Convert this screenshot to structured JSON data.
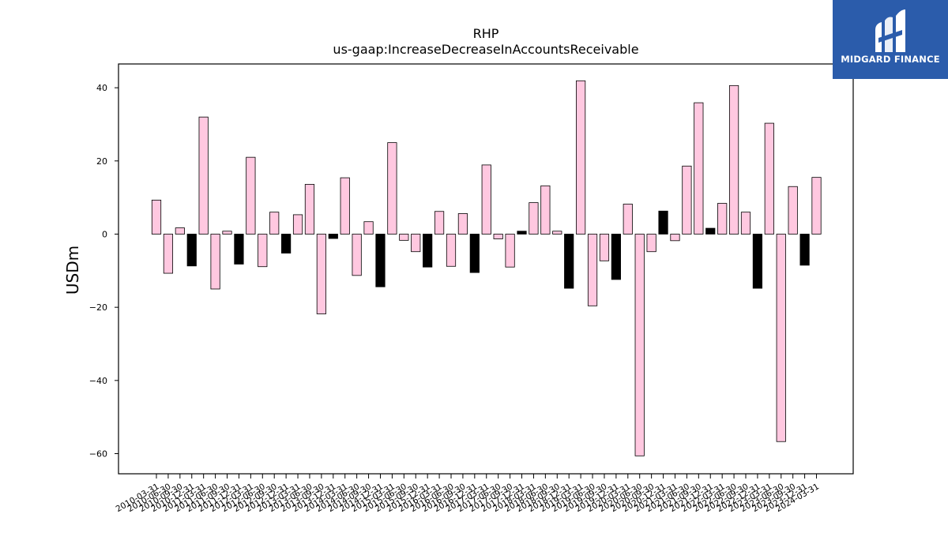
{
  "logo": {
    "text": "MIDGARD FINANCE",
    "background": "#2b5cab"
  },
  "chart_data": {
    "type": "bar",
    "title": "RHP",
    "subtitle": "us-gaap:IncreaseDecreaseInAccountsReceivable",
    "xlabel": "",
    "ylabel": "USDm",
    "ylim": [
      -65.5,
      46.5
    ],
    "yticks": [
      40,
      20,
      0,
      -20,
      -40,
      -60
    ],
    "ytick_labels": [
      "40",
      "20",
      "0",
      "−20",
      "−40",
      "−60"
    ],
    "grid": false,
    "colors": {
      "q1_q3": "#ffc8e0",
      "q4": "#000000",
      "edge": "#000000"
    },
    "categories": [
      "2010-03-31",
      "2010-06-30",
      "2010-09-30",
      "2010-12-31",
      "2011-03-31",
      "2011-06-30",
      "2011-09-30",
      "2011-12-31",
      "2012-03-31",
      "2012-06-30",
      "2012-09-30",
      "2012-12-31",
      "2013-03-31",
      "2013-06-30",
      "2013-09-30",
      "2013-12-31",
      "2014-03-31",
      "2014-06-30",
      "2014-09-30",
      "2014-12-31",
      "2015-03-31",
      "2015-06-30",
      "2015-09-30",
      "2015-12-31",
      "2016-03-31",
      "2016-06-30",
      "2016-09-30",
      "2016-12-31",
      "2017-03-31",
      "2017-06-30",
      "2017-09-30",
      "2017-12-31",
      "2018-03-31",
      "2018-06-30",
      "2018-09-30",
      "2018-12-31",
      "2019-03-31",
      "2019-06-30",
      "2019-09-30",
      "2019-12-31",
      "2020-03-31",
      "2020-06-30",
      "2020-09-30",
      "2020-12-31",
      "2021-03-31",
      "2021-06-30",
      "2021-09-30",
      "2021-12-31",
      "2022-03-31",
      "2022-06-30",
      "2022-09-30",
      "2022-12-31",
      "2023-03-31",
      "2023-06-30",
      "2023-09-30",
      "2023-12-31",
      "2024-03-31"
    ],
    "values": [
      9.3,
      -10.7,
      1.7,
      -8.7,
      32.0,
      -15.0,
      0.8,
      -8.2,
      21.0,
      -8.9,
      6.0,
      -5.2,
      5.3,
      13.6,
      -21.8,
      -1.2,
      15.4,
      -11.3,
      3.4,
      -14.4,
      25.0,
      -1.7,
      -4.8,
      -9.0,
      6.2,
      -8.8,
      5.6,
      -10.5,
      18.9,
      -1.3,
      -9.0,
      0.8,
      8.6,
      13.2,
      0.8,
      -14.8,
      41.9,
      -19.6,
      -7.3,
      -12.4,
      8.2,
      -60.6,
      -4.8,
      6.3,
      -1.8,
      18.6,
      35.9,
      1.6,
      8.4,
      40.6,
      6.0,
      -14.8,
      30.3,
      -56.7,
      13.0,
      -8.5,
      15.5
    ]
  }
}
